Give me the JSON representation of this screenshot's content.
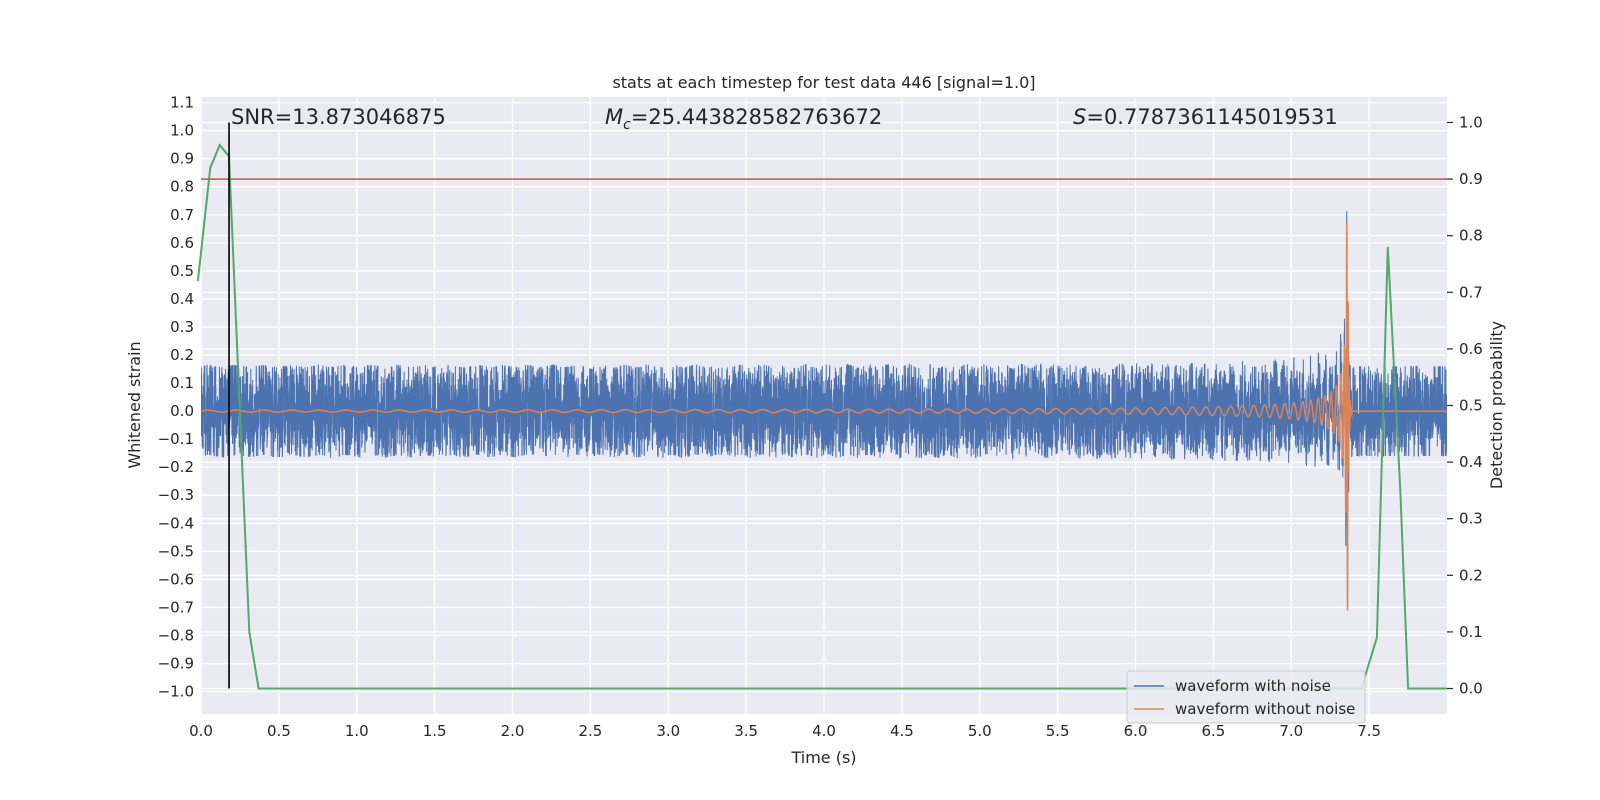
{
  "chart_data": {
    "type": "line",
    "title": "stats at each timestep for test data 446 [signal=1.0]",
    "xlabel": "Time (s)",
    "ylabel": "Whitened strain",
    "y2label": "Detection probability",
    "xlim": [
      0.0,
      8.0
    ],
    "ylim": [
      -1.08,
      1.12
    ],
    "y2lim": [
      -0.045,
      1.045
    ],
    "xticks": [
      "0.0",
      "0.5",
      "1.0",
      "1.5",
      "2.0",
      "2.5",
      "3.0",
      "3.5",
      "4.0",
      "4.5",
      "5.0",
      "5.5",
      "6.0",
      "6.5",
      "7.0",
      "7.5"
    ],
    "yticks": [
      "1.1",
      "1.0",
      "0.9",
      "0.8",
      "0.7",
      "0.6",
      "0.5",
      "0.4",
      "0.3",
      "0.2",
      "0.1",
      "0.0",
      "−0.1",
      "−0.2",
      "−0.3",
      "−0.4",
      "−0.5",
      "−0.6",
      "−0.7",
      "−0.8",
      "−0.9",
      "−1.0"
    ],
    "y2ticks": [
      "0.0",
      "0.1",
      "0.2",
      "0.3",
      "0.4",
      "0.5",
      "0.6",
      "0.7",
      "0.8",
      "0.9",
      "1.0"
    ],
    "grid": true,
    "legend_position": "bottom-right",
    "annotations": {
      "snr": "SNR=13.873046875",
      "mc_symbol": "M",
      "mc_sub": "c",
      "mc_value": "=25.443828582763672",
      "s_symbol": "S",
      "s_value": "=0.7787361145019531"
    },
    "threshold": 0.9,
    "detection_time": 0.18,
    "merger_time": 7.36,
    "series": [
      {
        "name": "waveform with noise",
        "color": "#4c72b0",
        "noise_amplitude": 0.16
      },
      {
        "name": "waveform without noise",
        "color": "#dd8452"
      },
      {
        "color": "#55a868",
        "x": [
          -0.02,
          0.06,
          0.12,
          0.18,
          0.24,
          0.31,
          0.37,
          0.45,
          7.45,
          7.55,
          7.62,
          7.7,
          7.75,
          7.85,
          8.0
        ],
        "values": [
          0.72,
          0.92,
          0.96,
          0.94,
          0.55,
          0.1,
          0.0,
          0.0,
          0.0,
          0.09,
          0.78,
          0.35,
          0.0,
          0.0,
          0.0
        ]
      }
    ]
  }
}
